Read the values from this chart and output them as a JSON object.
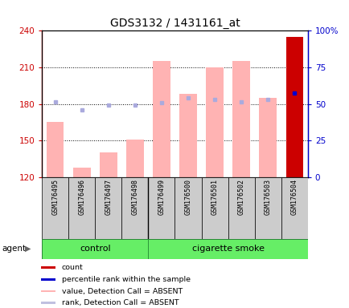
{
  "title": "GDS3132 / 1431161_at",
  "samples": [
    "GSM176495",
    "GSM176496",
    "GSM176497",
    "GSM176498",
    "GSM176499",
    "GSM176500",
    "GSM176501",
    "GSM176502",
    "GSM176503",
    "GSM176504"
  ],
  "bar_values": [
    165,
    128,
    140,
    151,
    215,
    188,
    210,
    215,
    185,
    235
  ],
  "bar_colors": [
    "#ffb3b3",
    "#ffb3b3",
    "#ffb3b3",
    "#ffb3b3",
    "#ffb3b3",
    "#ffb3b3",
    "#ffb3b3",
    "#ffb3b3",
    "#ffb3b3",
    "#cc0000"
  ],
  "rank_dots": [
    182,
    175,
    179,
    179,
    181,
    185,
    184,
    182,
    184,
    189
  ],
  "rank_dot_colors": [
    "#aaaadd",
    "#aaaadd",
    "#aaaadd",
    "#aaaadd",
    "#aaaadd",
    "#aaaadd",
    "#aaaadd",
    "#aaaadd",
    "#aaaadd",
    "#0000cc"
  ],
  "ylim_left": [
    120,
    240
  ],
  "ylim_right": [
    0,
    100
  ],
  "yticks_left": [
    120,
    150,
    180,
    210,
    240
  ],
  "yticks_right": [
    0,
    25,
    50,
    75,
    100
  ],
  "yticklabels_right": [
    "0",
    "25",
    "50",
    "75",
    "100%"
  ],
  "control_count": 4,
  "smoke_count": 6,
  "control_label": "control",
  "smoke_label": "cigarette smoke",
  "agent_label": "agent",
  "legend_items": [
    {
      "color": "#cc0000",
      "label": "count"
    },
    {
      "color": "#0000cc",
      "label": "percentile rank within the sample"
    },
    {
      "color": "#ffb3b3",
      "label": "value, Detection Call = ABSENT"
    },
    {
      "color": "#c0c0e0",
      "label": "rank, Detection Call = ABSENT"
    }
  ],
  "bar_bottom": 120,
  "tick_color_left": "#cc0000",
  "tick_color_right": "#0000cc",
  "plot_bg": "#ffffff",
  "gridline_values": [
    150,
    180,
    210
  ]
}
